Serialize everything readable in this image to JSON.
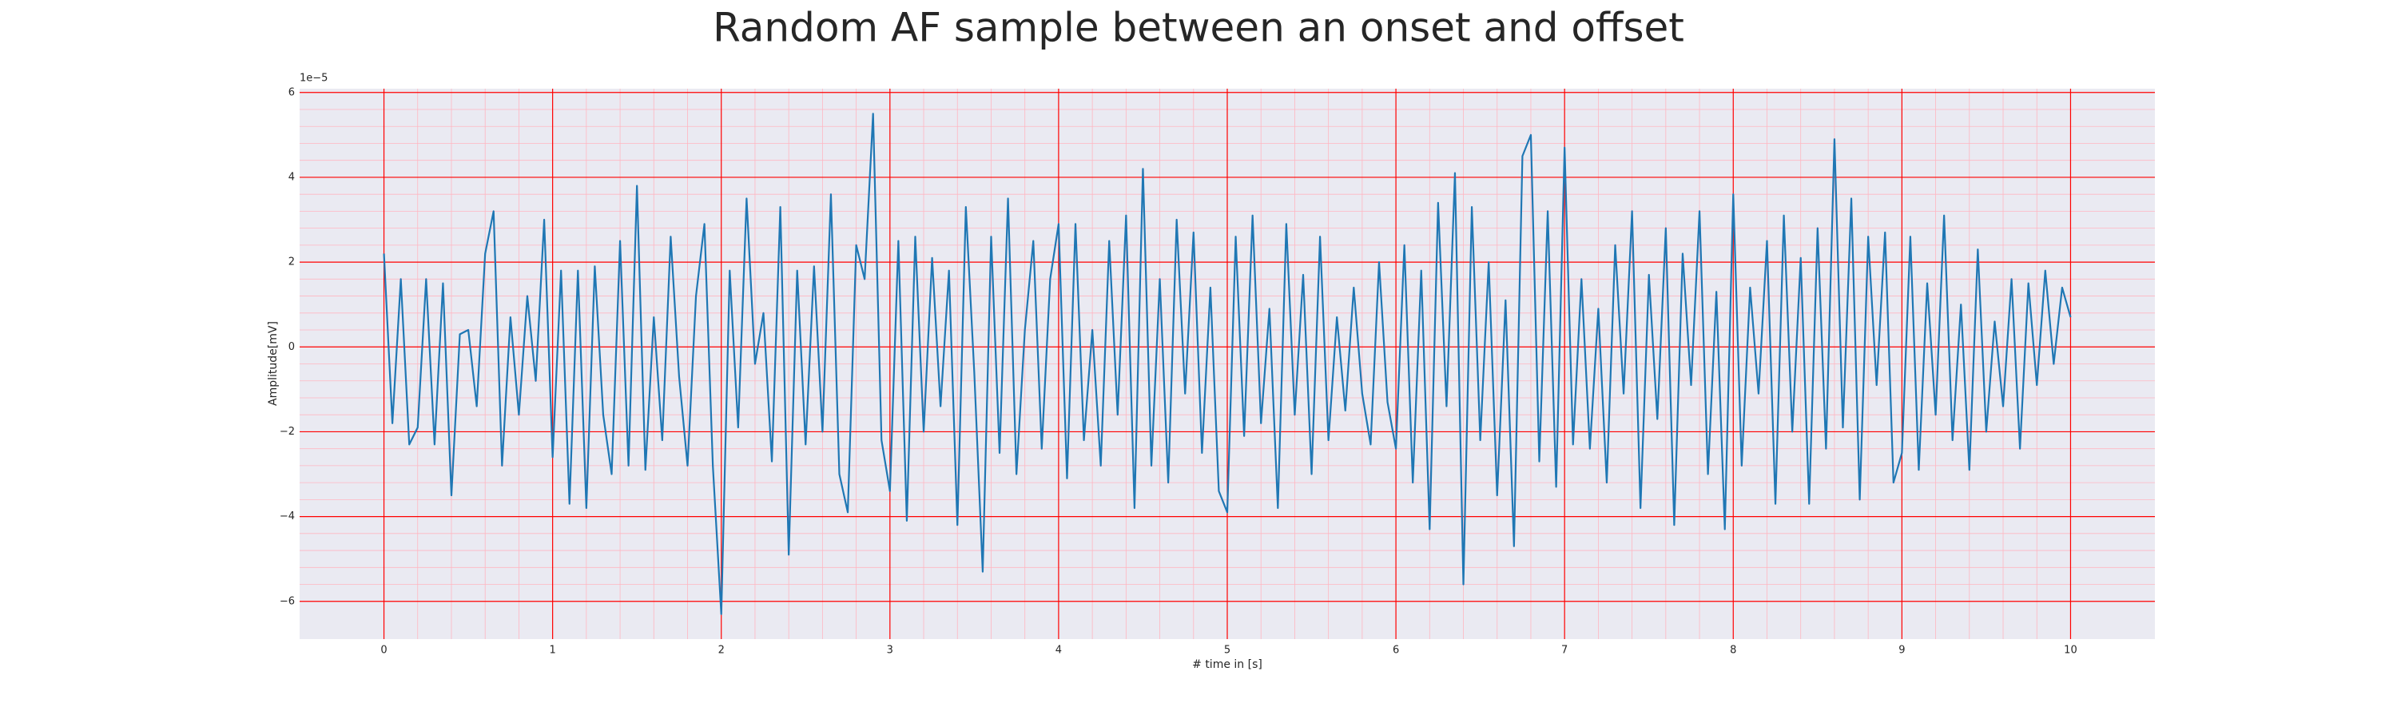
{
  "chart_data": {
    "type": "line",
    "title": "Random AF sample between an onset and offset",
    "x_label": "# time in [s]",
    "y_label": "Amplitude[mV]",
    "y_offset_label": "1e−5",
    "background": "#eaeaf2",
    "grid": true,
    "grid_color": "#ff0000",
    "minor_grid": true,
    "minor_grid_color": "#ffb6c1",
    "xlim": [
      -0.5,
      10.5
    ],
    "ylim": [
      -6.89,
      6.09
    ],
    "xticks": [
      0,
      1,
      2,
      3,
      4,
      5,
      6,
      7,
      8,
      9,
      10
    ],
    "yticks": [
      {
        "value": -6,
        "label": "−6"
      },
      {
        "value": -4,
        "label": "−4"
      },
      {
        "value": -2,
        "label": "−2"
      },
      0,
      2,
      4,
      6
    ],
    "x": [
      0,
      0.05,
      0.1,
      0.15,
      0.2,
      0.25,
      0.3,
      0.35,
      0.4,
      0.45,
      0.5,
      0.55,
      0.6,
      0.65,
      0.7,
      0.75,
      0.8,
      0.85,
      0.9,
      0.95,
      1,
      1.05,
      1.1,
      1.15,
      1.2,
      1.25,
      1.3,
      1.35,
      1.4,
      1.45,
      1.5,
      1.55,
      1.6,
      1.65,
      1.7,
      1.75,
      1.8,
      1.85,
      1.9,
      1.95,
      2,
      2.05,
      2.1,
      2.15,
      2.2,
      2.25,
      2.3,
      2.35,
      2.4,
      2.45,
      2.5,
      2.55,
      2.6,
      2.65,
      2.7,
      2.75,
      2.8,
      2.85,
      2.9,
      2.95,
      3,
      3.05,
      3.1,
      3.15,
      3.2,
      3.25,
      3.3,
      3.35,
      3.4,
      3.45,
      3.5,
      3.55,
      3.6,
      3.65,
      3.7,
      3.75,
      3.8,
      3.85,
      3.9,
      3.95,
      4,
      4.05,
      4.1,
      4.15,
      4.2,
      4.25,
      4.3,
      4.35,
      4.4,
      4.45,
      4.5,
      4.55,
      4.6,
      4.65,
      4.7,
      4.75,
      4.8,
      4.85,
      4.9,
      4.95,
      5,
      5.05,
      5.1,
      5.15,
      5.2,
      5.25,
      5.3,
      5.35,
      5.4,
      5.45,
      5.5,
      5.55,
      5.6,
      5.65,
      5.7,
      5.75,
      5.8,
      5.85,
      5.9,
      5.95,
      6,
      6.05,
      6.1,
      6.15,
      6.2,
      6.25,
      6.3,
      6.35,
      6.4,
      6.45,
      6.5,
      6.55,
      6.6,
      6.65,
      6.7,
      6.75,
      6.8,
      6.85,
      6.9,
      6.95,
      7,
      7.05,
      7.1,
      7.15,
      7.2,
      7.25,
      7.3,
      7.35,
      7.4,
      7.45,
      7.5,
      7.55,
      7.6,
      7.65,
      7.7,
      7.75,
      7.8,
      7.85,
      7.9,
      7.95,
      8,
      8.05,
      8.1,
      8.15,
      8.2,
      8.25,
      8.3,
      8.35,
      8.4,
      8.45,
      8.5,
      8.55,
      8.6,
      8.65,
      8.7,
      8.75,
      8.8,
      8.85,
      8.9,
      8.95,
      9,
      9.05,
      9.1,
      9.15,
      9.2,
      9.25,
      9.3,
      9.35,
      9.4,
      9.45,
      9.5,
      9.55,
      9.6,
      9.65,
      9.7,
      9.75,
      9.8,
      9.85,
      9.9,
      9.95,
      10
    ],
    "series": [
      {
        "color": "#1f77b4",
        "values": [
          2.2,
          -1.8,
          1.6,
          -2.3,
          -1.9,
          1.6,
          -2.3,
          1.5,
          -3.5,
          0.3,
          0.4,
          -1.4,
          2.2,
          3.2,
          -2.8,
          0.7,
          -1.6,
          1.2,
          -0.8,
          3.0,
          -2.6,
          1.8,
          -3.7,
          1.8,
          -3.8,
          1.9,
          -1.6,
          -3.0,
          2.5,
          -2.8,
          3.8,
          -2.9,
          0.7,
          -2.2,
          2.6,
          -0.7,
          -2.8,
          1.2,
          2.9,
          -2.8,
          -6.3,
          1.8,
          -1.9,
          3.5,
          -0.4,
          0.8,
          -2.7,
          3.3,
          -4.9,
          1.8,
          -2.3,
          1.9,
          -2.0,
          3.6,
          -3.0,
          -3.9,
          2.4,
          1.6,
          5.5,
          -2.2,
          -3.4,
          2.5,
          -4.1,
          2.6,
          -2.0,
          2.1,
          -1.4,
          1.8,
          -4.2,
          3.3,
          -0.6,
          -5.3,
          2.6,
          -2.5,
          3.5,
          -3.0,
          0.4,
          2.5,
          -2.4,
          1.6,
          2.9,
          -3.1,
          2.9,
          -2.2,
          0.4,
          -2.8,
          2.5,
          -1.6,
          3.1,
          -3.8,
          4.2,
          -2.8,
          1.6,
          -3.2,
          3.0,
          -1.1,
          2.7,
          -2.5,
          1.4,
          -3.4,
          -3.9,
          2.6,
          -2.1,
          3.1,
          -1.8,
          0.9,
          -3.8,
          2.9,
          -1.6,
          1.7,
          -3.0,
          2.6,
          -2.2,
          0.7,
          -1.5,
          1.4,
          -1.1,
          -2.3,
          2.0,
          -1.3,
          -2.4,
          2.4,
          -3.2,
          1.8,
          -4.3,
          3.4,
          -1.4,
          4.1,
          -5.6,
          3.3,
          -2.2,
          2.0,
          -3.5,
          1.1,
          -4.7,
          4.5,
          5.0,
          -2.7,
          3.2,
          -3.3,
          4.7,
          -2.3,
          1.6,
          -2.4,
          0.9,
          -3.2,
          2.4,
          -1.1,
          3.2,
          -3.8,
          1.7,
          -1.7,
          2.8,
          -4.2,
          2.2,
          -0.9,
          3.2,
          -3.0,
          1.3,
          -4.3,
          3.6,
          -2.8,
          1.4,
          -1.1,
          2.5,
          -3.7,
          3.1,
          -2.0,
          2.1,
          -3.7,
          2.8,
          -2.4,
          4.9,
          -1.9,
          3.5,
          -3.6,
          2.6,
          -0.9,
          2.7,
          -3.2,
          -2.5,
          2.6,
          -2.9,
          1.5,
          -1.6,
          3.1,
          -2.2,
          1.0,
          -2.9,
          2.3,
          -2.0,
          0.6,
          -1.4,
          1.6,
          -2.4,
          1.5,
          -0.9,
          1.8,
          -0.4,
          1.4,
          0.7
        ]
      }
    ]
  }
}
